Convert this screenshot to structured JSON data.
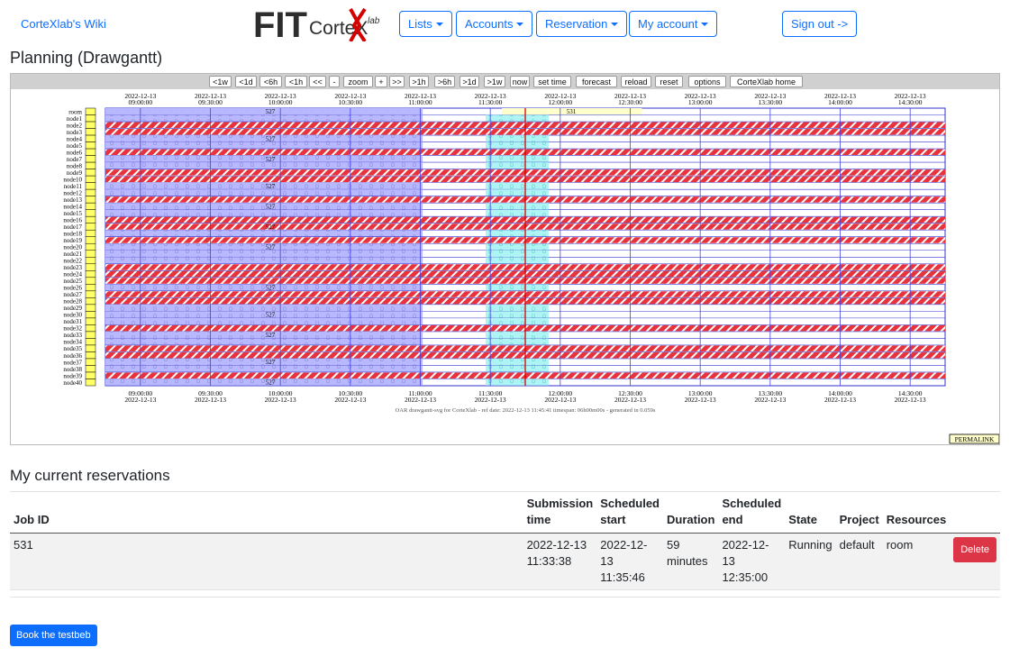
{
  "nav": {
    "wiki_link": "CorteXlab's Wiki",
    "logo_text": "FIT",
    "logo_sub": "CorteX",
    "logo_lab": "lab",
    "menus": [
      {
        "label": "Lists"
      },
      {
        "label": "Accounts"
      },
      {
        "label": "Reservation"
      },
      {
        "label": "My account"
      }
    ],
    "signout": "Sign out ->"
  },
  "planning": {
    "title": "Planning (Drawgantt)",
    "toolbar": [
      "<1w",
      "<1d",
      "<6h",
      "<1h",
      "<<",
      "-",
      "zoom",
      "+",
      ">>",
      ">1h",
      ">6h",
      ">1d",
      ">1w",
      "now",
      "set time",
      "forecast",
      "reload",
      "reset",
      "options",
      "CorteXlab home"
    ],
    "time_labels": [
      "09:00:00",
      "09:30:00",
      "10:00:00",
      "10:30:00",
      "11:00:00",
      "11:30:00",
      "12:00:00",
      "12:30:00",
      "13:00:00",
      "13:30:00",
      "14:00:00",
      "14:30:00"
    ],
    "date_label": "2022-12-13",
    "resources": [
      "room",
      "node1",
      "node2",
      "node3",
      "node4",
      "node5",
      "node6",
      "node7",
      "node8",
      "node9",
      "node10",
      "node11",
      "node12",
      "node13",
      "node14",
      "node15",
      "node16",
      "node17",
      "node18",
      "node19",
      "node20",
      "node21",
      "node22",
      "node23",
      "node24",
      "node25",
      "node26",
      "node27",
      "node28",
      "node29",
      "node30",
      "node31",
      "node32",
      "node33",
      "node34",
      "node35",
      "node36",
      "node37",
      "node38",
      "node39",
      "node40"
    ],
    "job_527": "527",
    "job_531": "531",
    "footer": "OAR drawgantt-svg for CorteXlab - ref date: 2022-12-13 11:45:41 timespan: 06h00m00s - generated in 0.059s",
    "permalink": "PERMALINK",
    "colors": {
      "job527": "#b8b8ff",
      "job531": "#ffffcc",
      "stripe": "#e8333c",
      "forecast": "#aef4f4",
      "now_line": "#d40000",
      "grid": "#4444dd"
    }
  },
  "reservations": {
    "heading": "My current reservations",
    "columns": {
      "job_id": "Job ID",
      "submission_l1": "Submission",
      "submission_l2": "time",
      "start_l1": "Scheduled",
      "start_l2": "start",
      "duration": "Duration",
      "end_l1": "Scheduled",
      "end_l2": "end",
      "state": "State",
      "project": "Project",
      "resources": "Resources"
    },
    "rows": [
      {
        "job_id": "531",
        "submission_1": "2022-12-13",
        "submission_2": "11:33:38",
        "start_1": "2022-12-",
        "start_2": "13",
        "start_3": "11:35:46",
        "duration_1": "59",
        "duration_2": "minutes",
        "end_1": "2022-12-",
        "end_2": "13",
        "end_3": "12:35:00",
        "state": "Running",
        "project": "default",
        "resources": "room",
        "delete": "Delete"
      }
    ]
  },
  "book_button": "Book the testbeb"
}
